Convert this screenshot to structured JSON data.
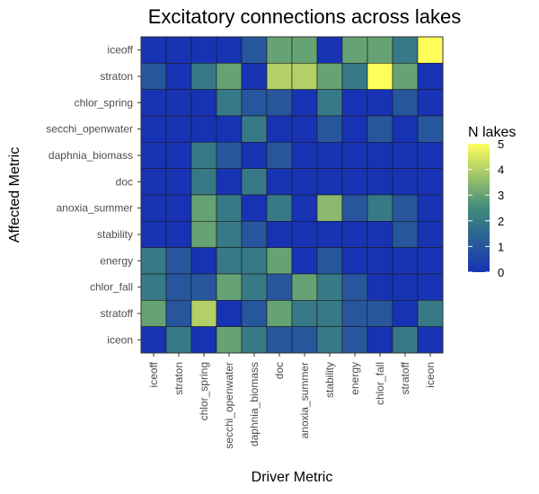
{
  "chart_data": {
    "type": "heatmap",
    "title": "Excitatory connections across lakes",
    "xlabel": "Driver Metric",
    "ylabel": "Affected Metric",
    "x_categories": [
      "iceoff",
      "straton",
      "chlor_spring",
      "secchi_openwater",
      "daphnia_biomass",
      "doc",
      "anoxia_summer",
      "stability",
      "energy",
      "chlor_fall",
      "stratoff",
      "iceon"
    ],
    "y_categories": [
      "iceoff",
      "straton",
      "chlor_spring",
      "secchi_openwater",
      "daphnia_biomass",
      "doc",
      "anoxia_summer",
      "stability",
      "energy",
      "chlor_fall",
      "stratoff",
      "iceon"
    ],
    "values": [
      [
        0,
        0,
        0,
        0,
        1,
        3,
        3,
        0,
        3,
        3,
        2,
        5
      ],
      [
        1,
        0,
        2,
        3,
        0,
        4,
        4,
        3,
        2,
        5,
        3,
        0
      ],
      [
        0,
        0,
        0,
        2,
        1,
        1,
        0,
        2,
        0,
        0,
        1,
        0
      ],
      [
        0,
        0,
        0,
        0,
        2,
        0,
        0,
        1,
        0,
        1,
        0,
        1
      ],
      [
        0,
        0,
        2,
        1,
        0,
        1,
        0,
        0,
        0,
        0,
        0,
        0
      ],
      [
        0,
        0,
        2,
        0,
        2,
        0,
        0,
        0,
        0,
        0,
        0,
        0
      ],
      [
        0,
        0,
        3,
        2,
        0,
        2,
        0,
        3.5,
        1,
        2,
        1,
        0
      ],
      [
        0,
        0,
        3,
        2,
        1,
        0,
        0,
        0,
        0,
        0,
        1,
        0
      ],
      [
        2,
        1,
        0,
        2,
        2,
        3,
        0,
        1,
        0,
        0,
        0,
        0
      ],
      [
        2,
        1,
        1,
        3,
        2,
        1,
        3,
        2,
        1,
        0,
        0,
        0
      ],
      [
        3,
        1,
        4,
        0,
        1,
        3,
        2,
        2,
        1,
        1,
        0,
        2
      ],
      [
        0,
        2,
        0,
        3,
        2,
        1,
        1,
        2,
        1,
        0,
        2,
        0
      ]
    ],
    "legend": {
      "title": "N lakes",
      "ticks": [
        0,
        1,
        2,
        3,
        4,
        5
      ],
      "placement": "right"
    },
    "range": [
      0,
      5
    ],
    "colors": {
      "low": "#1733b4",
      "mid": "#3f8b7a",
      "high": "#fffe5a",
      "cell_border": "#1a1a1a",
      "panel_border": "#333333"
    }
  }
}
